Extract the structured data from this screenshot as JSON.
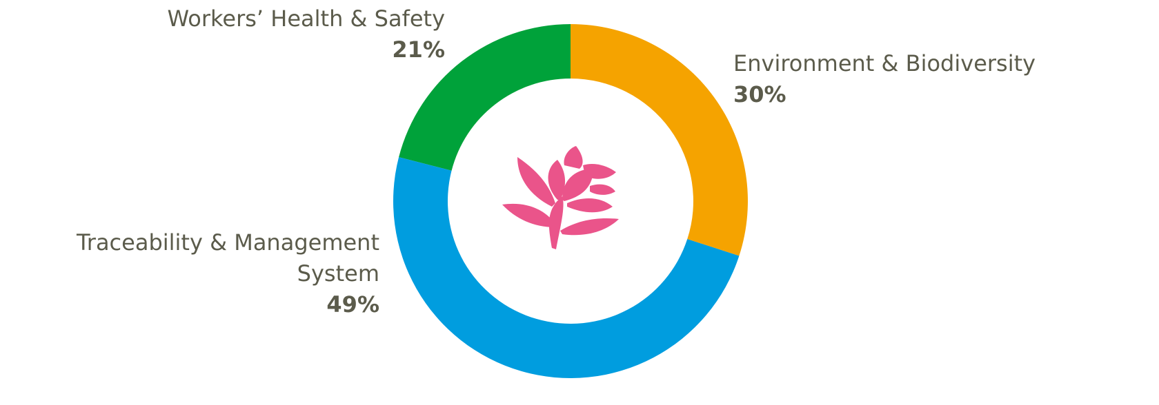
{
  "chart_data": {
    "type": "pie",
    "categories": [
      "Environment & Biodiversity",
      "Traceability & Management System",
      "Workers’ Health & Safety"
    ],
    "values": [
      30,
      49,
      21
    ],
    "value_labels": [
      "30%",
      "49%",
      "21%"
    ],
    "colors": [
      "#f5a300",
      "#009ddf",
      "#00a23a"
    ]
  }
}
